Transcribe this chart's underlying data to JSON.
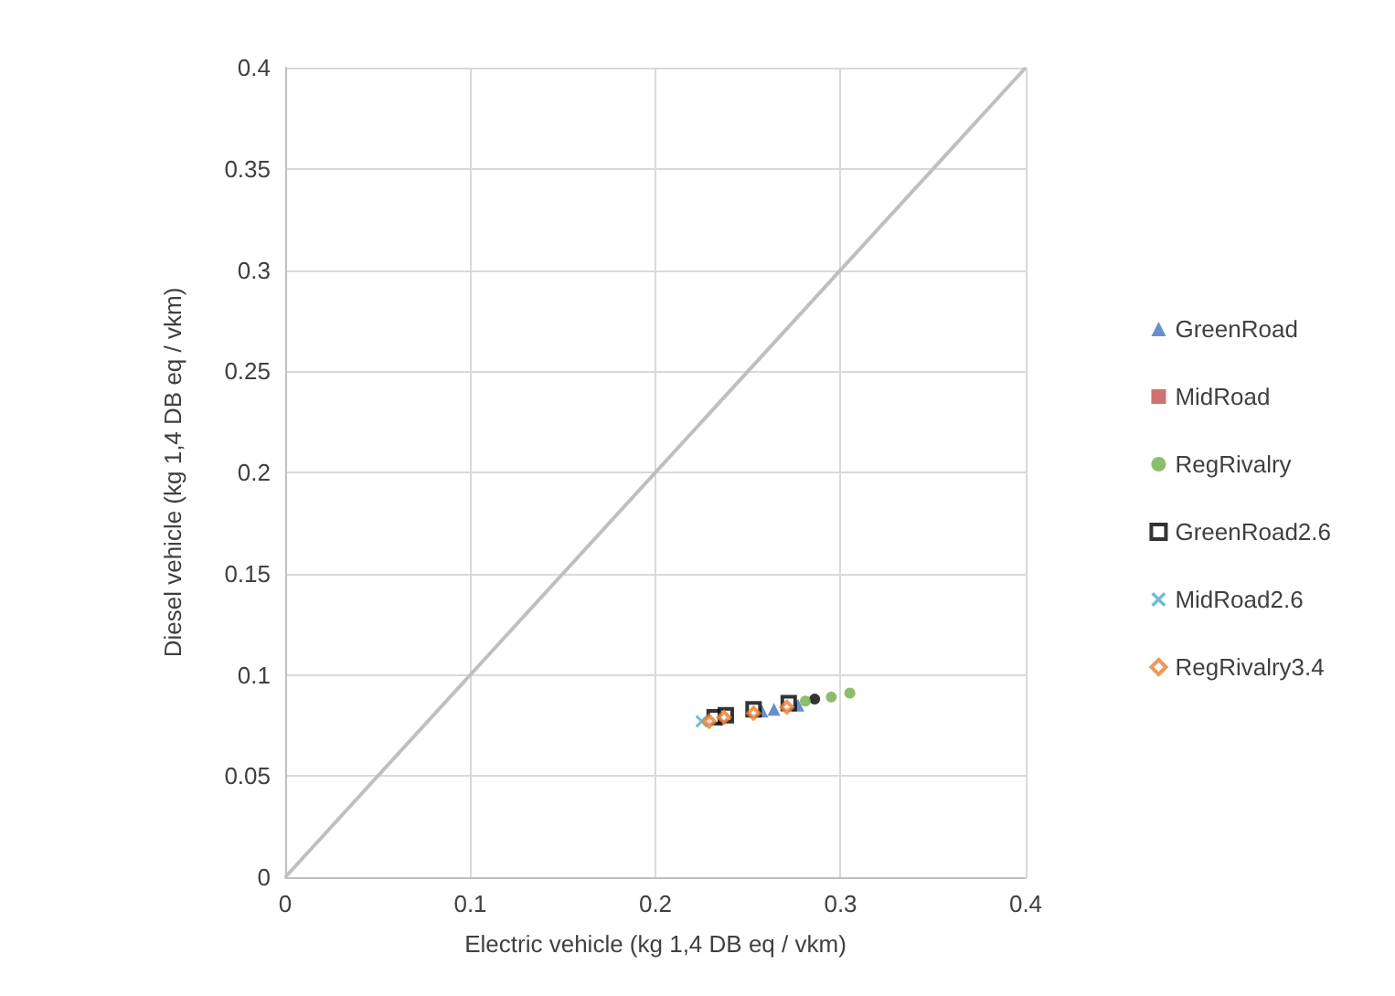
{
  "chart_data": {
    "type": "scatter",
    "xlabel": "Electric vehicle (kg 1,4 DB eq / vkm)",
    "ylabel": "Diesel vehicle (kg 1,4 DB eq / vkm)",
    "xlim": [
      0,
      0.4
    ],
    "xticks": [
      0,
      0.1,
      0.2,
      0.3,
      0.4
    ],
    "ylim": [
      0,
      0.4
    ],
    "yticks": [
      0,
      0.05,
      0.1,
      0.15,
      0.2,
      0.25,
      0.3,
      0.35,
      0.4
    ],
    "grid": true,
    "legend": "right",
    "series": [
      {
        "type": "line",
        "color": "#bfbfbf",
        "x": [
          0,
          0.4
        ],
        "values": [
          0,
          0.4
        ],
        "marker": "none"
      },
      {
        "name": "GreenRoad",
        "color": "#4472c4",
        "marker": "triangle",
        "x": [
          0.2575,
          0.264,
          0.277
        ],
        "values": [
          0.082,
          0.083,
          0.085
        ]
      },
      {
        "name": "MidRoad",
        "color": "#c0504d",
        "x": [
          null
        ],
        "values": [
          null
        ]
      },
      {
        "name": "RegRivalry",
        "color": "#70ad47",
        "marker": "circle",
        "x": [
          0.281,
          0.295,
          0.305
        ],
        "values": [
          0.087,
          0.089,
          0.091
        ]
      },
      {
        "name": "GreenRoad2.6",
        "color": "#000000",
        "marker": "square",
        "x": [
          0.232,
          0.238,
          0.253,
          0.272
        ],
        "values": [
          0.079,
          0.08,
          0.083,
          0.086
        ]
      },
      {
        "name": "MidRoad2.6",
        "color": "#4bacc6",
        "marker": "cross",
        "x": [
          0.225
        ],
        "values": [
          0.077
        ]
      },
      {
        "name": "RegRivalry3.4",
        "color": "#ed7d31",
        "marker": "diamond",
        "x": [
          0.229,
          0.237,
          0.253,
          0.271
        ],
        "values": [
          0.077,
          0.079,
          0.081,
          0.084
        ]
      },
      {
        "color": "#000000",
        "marker": "circle",
        "x": [
          0.286
        ],
        "values": [
          0.088
        ]
      }
    ]
  }
}
